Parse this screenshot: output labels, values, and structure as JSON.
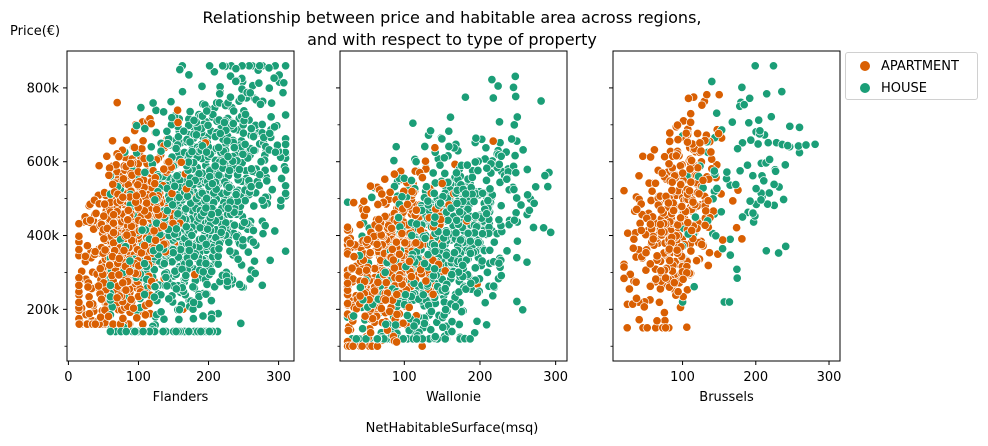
{
  "title_line1": "Relationship between price and habitable area across regions,",
  "title_line2": "and with respect to type of property",
  "ylabel": "Price(€)",
  "xlabel": "NetHabitableSurface(msq)",
  "legend": {
    "apartment_label": "APARTMENT",
    "house_label": "HOUSE"
  },
  "colors": {
    "apartment": "#d95f02",
    "house": "#1b9e77"
  },
  "chart_data": [
    {
      "type": "scatter",
      "subplot_xlabel": "Flanders",
      "xlim": [
        -2,
        322
      ],
      "ylim": [
        60000,
        900000
      ],
      "xticks": [
        0,
        100,
        200,
        300
      ],
      "yticks": [
        200000,
        400000,
        600000,
        800000
      ],
      "ytick_labels": [
        "200k",
        "400k",
        "600k",
        "800k"
      ],
      "series": [
        {
          "name": "APARTMENT",
          "cloud": {
            "x_range": [
              15,
              250
            ],
            "y_range": [
              160000,
              850000
            ],
            "center": [
              85,
              390000
            ],
            "x_spread": 35,
            "y_spread": 120000
          }
        },
        {
          "name": "HOUSE",
          "cloud": {
            "x_range": [
              60,
              310
            ],
            "y_range": [
              140000,
              860000
            ],
            "center": [
              185,
              470000
            ],
            "x_spread": 55,
            "y_spread": 160000
          }
        }
      ]
    },
    {
      "type": "scatter",
      "subplot_xlabel": "Wallonie",
      "xlim": [
        15,
        315
      ],
      "ylim": [
        60000,
        900000
      ],
      "xticks": [
        100,
        200,
        300
      ],
      "yticks": [
        200000,
        400000,
        600000,
        800000
      ],
      "series": [
        {
          "name": "APARTMENT",
          "cloud": {
            "x_range": [
              25,
              250
            ],
            "y_range": [
              100000,
              790000
            ],
            "center": [
              85,
              330000
            ],
            "x_spread": 35,
            "y_spread": 100000
          }
        },
        {
          "name": "HOUSE",
          "cloud": {
            "x_range": [
              25,
              300
            ],
            "y_range": [
              120000,
              860000
            ],
            "center": [
              150,
              370000
            ],
            "x_spread": 50,
            "y_spread": 130000
          }
        }
      ]
    },
    {
      "type": "scatter",
      "subplot_xlabel": "Brussels",
      "xlim": [
        5,
        315
      ],
      "ylim": [
        60000,
        900000
      ],
      "xticks": [
        100,
        200,
        300
      ],
      "yticks": [
        200000,
        400000,
        600000,
        800000
      ],
      "series": [
        {
          "name": "APARTMENT",
          "cloud": {
            "x_range": [
              20,
              270
            ],
            "y_range": [
              150000,
              850000
            ],
            "center": [
              90,
              430000
            ],
            "x_spread": 30,
            "y_spread": 130000
          }
        },
        {
          "name": "HOUSE",
          "cloud": {
            "x_range": [
              100,
              300
            ],
            "y_range": [
              220000,
              860000
            ],
            "center": [
              180,
              560000
            ],
            "x_spread": 45,
            "y_spread": 150000
          }
        }
      ]
    }
  ]
}
